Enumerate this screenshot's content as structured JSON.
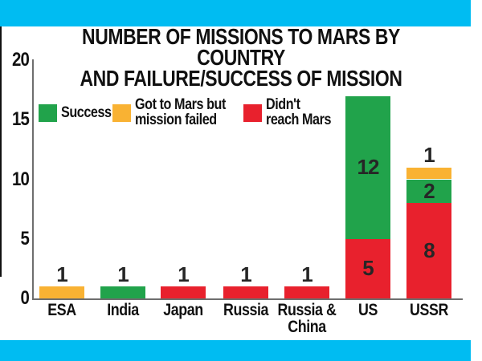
{
  "banner_color": "#00BCF2",
  "title": "NUMBER OF MISSIONS TO MARS BY COUNTRY\nAND FAILURE/SUCCESS OF MISSION",
  "legend": {
    "items": [
      {
        "name": "success-swatch",
        "label": "Success",
        "color": "#21A34B"
      },
      {
        "name": "got-to-mars-swatch",
        "label": "Got to Mars but\nmission failed",
        "color": "#F9B233"
      },
      {
        "name": "didnt-reach-swatch",
        "label": "Didn't\nreach Mars",
        "color": "#E8212D"
      }
    ]
  },
  "chart_data": {
    "type": "bar",
    "stacked": true,
    "title": "NUMBER OF MISSIONS TO MARS BY COUNTRY AND FAILURE/SUCCESS OF MISSION",
    "categories": [
      "ESA",
      "India",
      "Japan",
      "Russia",
      "Russia & China",
      "US",
      "USSR"
    ],
    "category_display": [
      "ESA",
      "India",
      "Japan",
      "Russia",
      "Russia &\nChina",
      "US",
      "USSR"
    ],
    "series": [
      {
        "name": "Success",
        "color": "#21A34B",
        "values": [
          0,
          1,
          0,
          0,
          0,
          12,
          2
        ]
      },
      {
        "name": "Got to Mars but mission failed",
        "color": "#F9B233",
        "values": [
          1,
          0,
          0,
          0,
          0,
          0,
          1
        ]
      },
      {
        "name": "Didn't reach Mars",
        "color": "#E8212D",
        "values": [
          0,
          0,
          1,
          1,
          1,
          5,
          8
        ]
      }
    ],
    "stack_order_bottom_to_top": [
      2,
      0,
      1
    ],
    "totals": [
      1,
      1,
      1,
      1,
      1,
      17,
      11
    ],
    "bar_value_labels": true,
    "xlabel": "",
    "ylabel": "",
    "ylim": [
      0,
      20
    ],
    "yticks": [
      0,
      5,
      10,
      15,
      20
    ],
    "grid": false,
    "legend_position": "top-left"
  }
}
